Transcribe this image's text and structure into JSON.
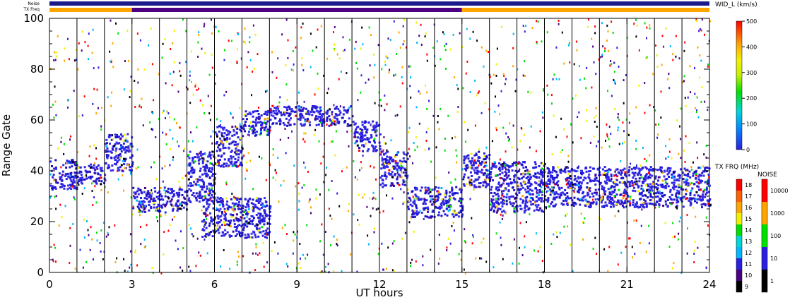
{
  "header": {
    "noise_label": "Noise",
    "txfreq_label": "TX Freq"
  },
  "chart_data": {
    "type": "heatmap",
    "title": "",
    "xlabel": "UT hours",
    "ylabel": "Range Gate",
    "xlim": [
      0,
      24
    ],
    "ylim": [
      0,
      100
    ],
    "x_ticks": [
      "0",
      "3",
      "6",
      "9",
      "12",
      "15",
      "18",
      "21",
      "24"
    ],
    "y_ticks": [
      "0",
      "20",
      "40",
      "60",
      "80",
      "100"
    ],
    "scan_boundaries_hours": [
      1,
      2,
      3,
      4,
      5,
      6,
      7,
      8,
      9,
      10,
      11,
      12,
      13,
      14,
      15,
      16,
      17,
      18,
      19,
      20,
      21,
      22,
      23
    ],
    "tx_freq_bar": [
      {
        "from": 0,
        "to": 3,
        "color": "#ffa500"
      },
      {
        "from": 3,
        "to": 15,
        "color": "#4b0082"
      },
      {
        "from": 15,
        "to": 24,
        "color": "#ffa500"
      }
    ],
    "main_colorbar": {
      "label": "WID_L (km/s)",
      "ticks": [
        "0",
        "100",
        "200",
        "300",
        "400",
        "500"
      ],
      "range": [
        0,
        500
      ]
    },
    "freq_colorbar": {
      "label": "TX FRQ (MHz)",
      "ticks": [
        "9",
        "10",
        "11",
        "12",
        "13",
        "14",
        "15",
        "16",
        "17",
        "18"
      ],
      "colors": [
        "#000000",
        "#4b0082",
        "#2a20e0",
        "#00b8ff",
        "#00d8d8",
        "#00e000",
        "#f0f000",
        "#ffa500",
        "#ff6000",
        "#ff0000"
      ]
    },
    "noise_colorbar": {
      "label": "NOISE",
      "ticks": [
        "1",
        "10",
        "100",
        "1000",
        "10000"
      ],
      "colors": [
        "#000000",
        "#2a20e0",
        "#00e000",
        "#ffa500",
        "#ff0000"
      ]
    },
    "echo_bands": [
      {
        "from": 0.0,
        "to": 1.0,
        "gate_min": 33,
        "gate_max": 45
      },
      {
        "from": 1.0,
        "to": 2.0,
        "gate_min": 35,
        "gate_max": 43
      },
      {
        "from": 2.0,
        "to": 3.0,
        "gate_min": 40,
        "gate_max": 55
      },
      {
        "from": 3.0,
        "to": 5.0,
        "gate_min": 24,
        "gate_max": 34
      },
      {
        "from": 5.0,
        "to": 6.0,
        "gate_min": 28,
        "gate_max": 48
      },
      {
        "from": 6.0,
        "to": 7.0,
        "gate_min": 42,
        "gate_max": 58
      },
      {
        "from": 7.0,
        "to": 8.0,
        "gate_min": 54,
        "gate_max": 64
      },
      {
        "from": 8.0,
        "to": 11.0,
        "gate_min": 58,
        "gate_max": 66
      },
      {
        "from": 5.5,
        "to": 8.0,
        "gate_min": 14,
        "gate_max": 30
      },
      {
        "from": 11.0,
        "to": 12.0,
        "gate_min": 48,
        "gate_max": 60
      },
      {
        "from": 12.0,
        "to": 13.0,
        "gate_min": 34,
        "gate_max": 48
      },
      {
        "from": 13.0,
        "to": 15.0,
        "gate_min": 22,
        "gate_max": 34
      },
      {
        "from": 15.0,
        "to": 16.0,
        "gate_min": 34,
        "gate_max": 48
      },
      {
        "from": 16.0,
        "to": 18.0,
        "gate_min": 24,
        "gate_max": 44
      },
      {
        "from": 18.0,
        "to": 24.0,
        "gate_min": 26,
        "gate_max": 42
      }
    ]
  }
}
